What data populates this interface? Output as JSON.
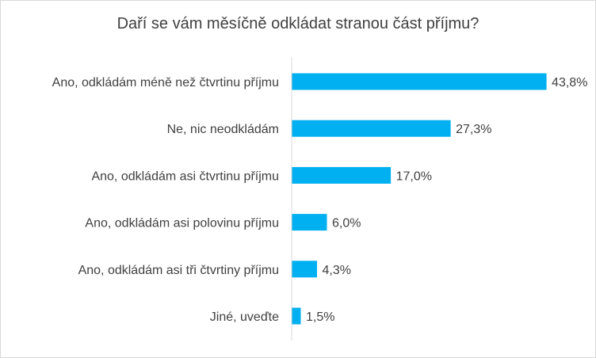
{
  "chart_data": {
    "type": "bar",
    "orientation": "horizontal",
    "title": "Daří se vám měsíčně odkládat stranou část příjmu?",
    "categories": [
      "Ano, odkládám méně než čtvrtinu příjmu",
      "Ne, nic neodkládám",
      "Ano, odkládám asi čtvrtinu příjmu",
      "Ano, odkládám asi polovinu příjmu",
      "Ano, odkládám asi tři čtvrtiny příjmu",
      "Jiné, uveďte"
    ],
    "values": [
      43.8,
      27.3,
      17.0,
      6.0,
      4.3,
      1.5
    ],
    "value_labels": [
      "43,8%",
      "27,3%",
      "17,0%",
      "6,0%",
      "4,3%",
      "1,5%"
    ],
    "xlim": [
      0,
      50
    ],
    "grid": false,
    "legend": "none",
    "bar_color": "#00B0F0",
    "axis_color": "#d9d9d9",
    "text_color": "#404040"
  }
}
